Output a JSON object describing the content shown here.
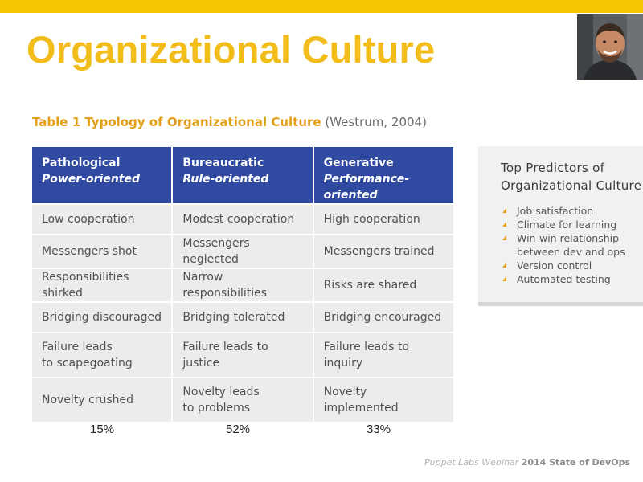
{
  "slide": {
    "title": "Organizational Culture",
    "accent_color": "#f6c400",
    "title_color": "#f2bd1b"
  },
  "table": {
    "caption_bold": "Table 1 Typology of Organizational Culture",
    "caption_rest": " (Westrum, 2004)",
    "header_color": "#2f4aa0",
    "columns": [
      {
        "title": "Pathological",
        "subtitle": "Power-oriented"
      },
      {
        "title": "Bureaucratic",
        "subtitle": "Rule-oriented"
      },
      {
        "title": "Generative",
        "subtitle": "Performance-oriented"
      }
    ],
    "rows": [
      [
        "Low cooperation",
        "Modest cooperation",
        "High cooperation"
      ],
      [
        "Messengers shot",
        "Messengers neglected",
        "Messengers trained"
      ],
      [
        "Responsibilities shirked",
        "Narrow responsibilities",
        "Risks are shared"
      ],
      [
        "Bridging discouraged",
        "Bridging tolerated",
        "Bridging encouraged"
      ],
      [
        "Failure leads\nto scapegoating",
        "Failure leads to justice",
        "Failure leads to inquiry"
      ],
      [
        "Novelty crushed",
        "Novelty leads\nto problems",
        "Novelty implemented"
      ]
    ],
    "percentages": [
      "15%",
      "52%",
      "33%"
    ]
  },
  "predictors": {
    "title": "Top Predictors of Organizational Culture",
    "bullet_color": "#e7a01c",
    "items": [
      "Job satisfaction",
      "Climate for learning",
      "Win-win relationship between dev and ops",
      "Version control",
      "Automated testing"
    ]
  },
  "footer": {
    "source": "Puppet Labs Webinar",
    "report": "2014 State of DevOps"
  },
  "avatar_icon": "presenter-photo"
}
